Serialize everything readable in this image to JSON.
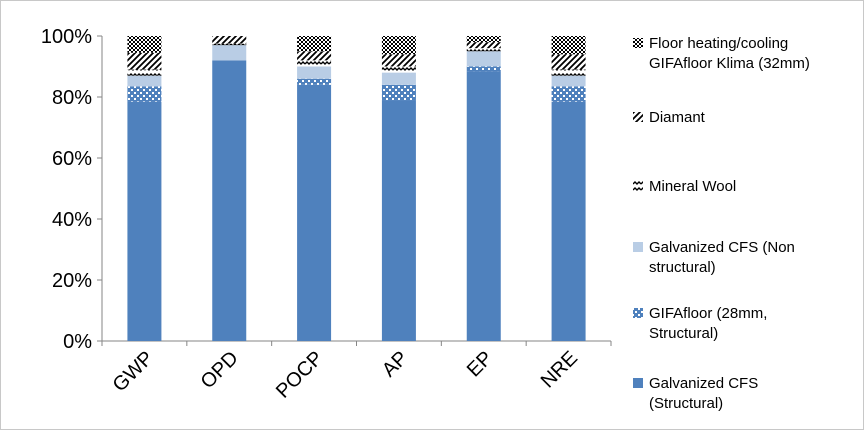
{
  "chart_data": {
    "type": "bar",
    "stacked": true,
    "percent_stacked": true,
    "categories": [
      "GWP",
      "OPD",
      "POCP",
      "AP",
      "EP",
      "NRE"
    ],
    "ylim": [
      0,
      100
    ],
    "yticks": [
      "0%",
      "20%",
      "40%",
      "60%",
      "80%",
      "100%"
    ],
    "grid": false,
    "legend_position": "right",
    "series": [
      {
        "name": "Galvanized CFS (Structural)",
        "values": [
          78.5,
          92,
          84,
          79,
          88.5,
          78.5
        ],
        "color": "#4f81bd",
        "pattern": "solid"
      },
      {
        "name": "GIFAfloor (28mm, Structural)",
        "values": [
          5,
          0,
          2,
          5,
          1.5,
          5
        ],
        "color": "#4f81bd",
        "pattern": "dots"
      },
      {
        "name": "Galvanized CFS (Non structural)",
        "values": [
          3.5,
          5,
          4,
          4,
          5,
          3.5
        ],
        "color": "#b9cde5",
        "pattern": "solid"
      },
      {
        "name": "Mineral Wool",
        "values": [
          2,
          0.5,
          2,
          2,
          1,
          2
        ],
        "color": "#000000",
        "pattern": "wave"
      },
      {
        "name": "Diamant",
        "values": [
          5.5,
          2.5,
          3,
          4,
          2,
          5
        ],
        "color": "#000000",
        "pattern": "diag"
      },
      {
        "name": "Floor heating/cooling GIFAfloor Klima (32mm)",
        "values": [
          5.5,
          0,
          5,
          6,
          2,
          6
        ],
        "color": "#000000",
        "pattern": "checker"
      }
    ]
  }
}
